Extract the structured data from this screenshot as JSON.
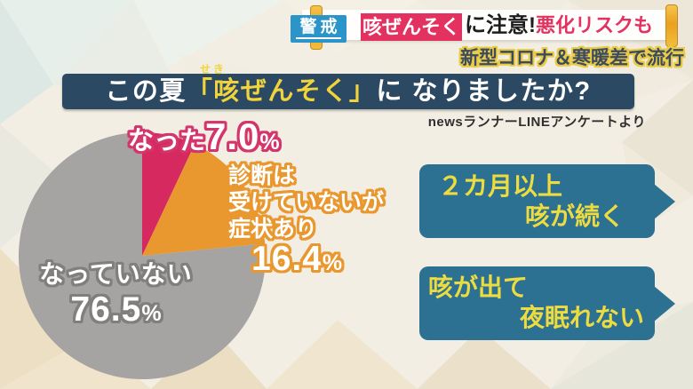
{
  "banner": {
    "alert_label": "警戒",
    "highlight": "咳ぜんそく",
    "warning_black": "に注意!",
    "warning_red": "悪化リスクも",
    "subtitle": "新型コロナ＆寒暖差で流行"
  },
  "title": {
    "left": "この夏",
    "highlight": "「咳ぜんそく」",
    "right": "に なりましたか?",
    "furigana": "せき"
  },
  "source": "newsランナーLINEアンケートより",
  "chart_data": {
    "type": "pie",
    "title": "この夏「咳ぜんそく」になりましたか?",
    "source": "newsランナーLINEアンケートより",
    "start_angle_deg": 0,
    "direction": "clockwise",
    "slices": [
      {
        "id": "natta",
        "label": "なった",
        "value": 7.0,
        "color": "#d5295f"
      },
      {
        "id": "shindan",
        "label": "診断は受けていないが症状あり",
        "value": 16.4,
        "color": "#e8982f"
      },
      {
        "id": "nattenai",
        "label": "なっていない",
        "value": 76.5,
        "color": "#a5a4a2"
      }
    ]
  },
  "pie_labels": {
    "natta": {
      "prefix": "なった",
      "value": "7.0",
      "percent": "%"
    },
    "shindan": {
      "line1": "診断は",
      "line2": "受けていないが",
      "line3": "症状あり",
      "value": "16.4",
      "percent": "%"
    },
    "nattenai": {
      "label": "なっていない",
      "value": "76.5",
      "percent": "%"
    }
  },
  "callouts": [
    {
      "line1": "２カ月以上",
      "line2": "咳が続く"
    },
    {
      "line1": "咳が出て",
      "line2": "夜眠れない"
    }
  ],
  "colors": {
    "title_bar_navy": "#2c4963",
    "badge_blue": "#2b95c9",
    "banner_red": "#e43260",
    "callout_teal": "#2c7092",
    "callout_text_yellow": "#eddc40",
    "title_highlight_yellow": "#f1d43c",
    "slice_pink": "#d5295f",
    "slice_orange": "#e8982f",
    "slice_gray": "#a5a4a2"
  }
}
